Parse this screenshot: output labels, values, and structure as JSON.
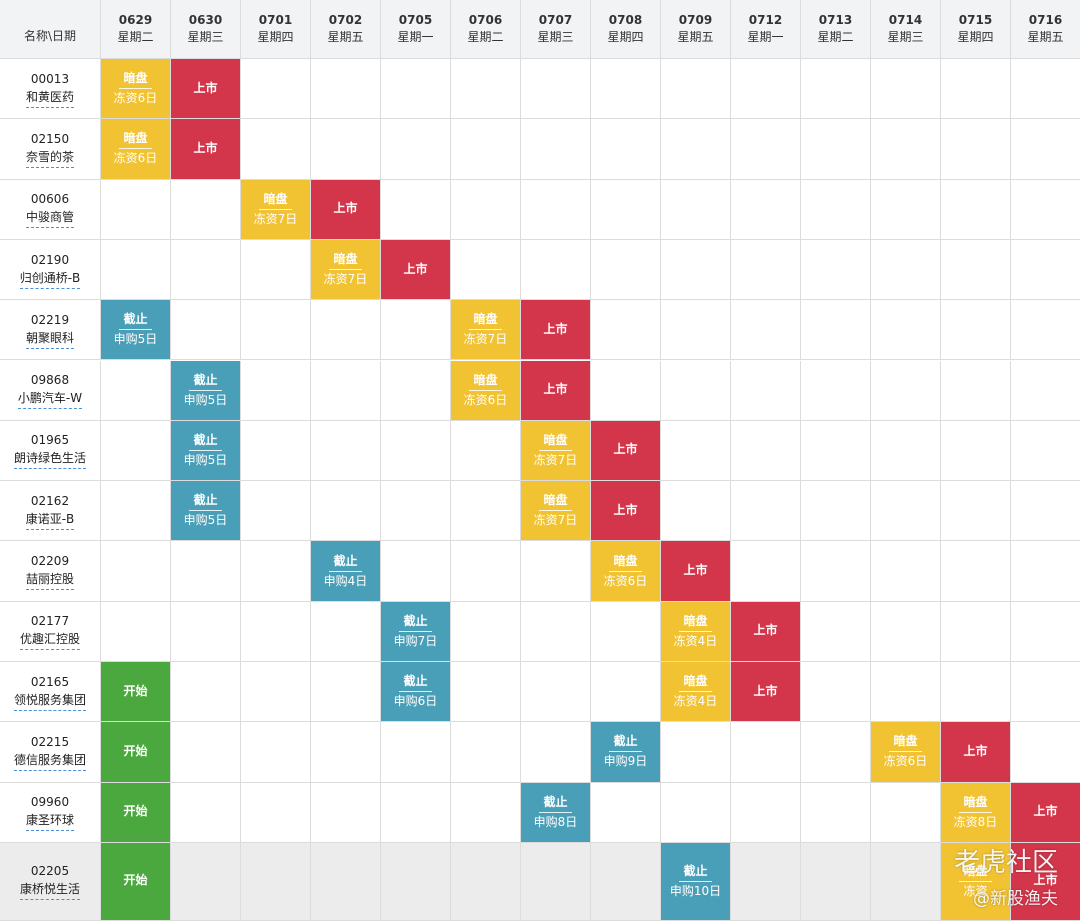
{
  "header": {
    "corner_label": "名称\\日期",
    "dates": [
      {
        "date": "0629",
        "weekday": "星期二"
      },
      {
        "date": "0630",
        "weekday": "星期三"
      },
      {
        "date": "0701",
        "weekday": "星期四"
      },
      {
        "date": "0702",
        "weekday": "星期五"
      },
      {
        "date": "0705",
        "weekday": "星期一"
      },
      {
        "date": "0706",
        "weekday": "星期二"
      },
      {
        "date": "0707",
        "weekday": "星期三"
      },
      {
        "date": "0708",
        "weekday": "星期四"
      },
      {
        "date": "0709",
        "weekday": "星期五"
      },
      {
        "date": "0712",
        "weekday": "星期一"
      },
      {
        "date": "0713",
        "weekday": "星期二"
      },
      {
        "date": "0714",
        "weekday": "星期三"
      },
      {
        "date": "0715",
        "weekday": "星期四"
      },
      {
        "date": "0716",
        "weekday": "星期五"
      }
    ]
  },
  "colors": {
    "start": "#4ba83f",
    "close": "#4a9fb8",
    "grey": "#f1c232",
    "list": "#d3364a",
    "last_row_bg": "#ececec"
  },
  "rows": [
    {
      "code": "00013",
      "name": "和黄医药",
      "events": [
        {
          "col": 0,
          "type": "grey",
          "l1": "暗盘",
          "l2": "冻资6日"
        },
        {
          "col": 1,
          "type": "list",
          "l1": "上市"
        }
      ]
    },
    {
      "code": "02150",
      "name": "奈雪的茶",
      "events": [
        {
          "col": 0,
          "type": "grey",
          "l1": "暗盘",
          "l2": "冻资6日"
        },
        {
          "col": 1,
          "type": "list",
          "l1": "上市"
        }
      ]
    },
    {
      "code": "00606",
      "name": "中骏商管",
      "events": [
        {
          "col": 2,
          "type": "grey",
          "l1": "暗盘",
          "l2": "冻资7日"
        },
        {
          "col": 3,
          "type": "list",
          "l1": "上市"
        }
      ]
    },
    {
      "code": "02190",
      "name": "归创通桥-B",
      "events": [
        {
          "col": 3,
          "type": "grey",
          "l1": "暗盘",
          "l2": "冻资7日"
        },
        {
          "col": 4,
          "type": "list",
          "l1": "上市"
        }
      ]
    },
    {
      "code": "02219",
      "name": "朝聚眼科",
      "events": [
        {
          "col": 0,
          "type": "close",
          "l1": "截止",
          "l2": "申购5日"
        },
        {
          "col": 5,
          "type": "grey",
          "l1": "暗盘",
          "l2": "冻资7日"
        },
        {
          "col": 6,
          "type": "list",
          "l1": "上市"
        }
      ]
    },
    {
      "code": "09868",
      "name": "小鹏汽车-W",
      "events": [
        {
          "col": 1,
          "type": "close",
          "l1": "截止",
          "l2": "申购5日"
        },
        {
          "col": 5,
          "type": "grey",
          "l1": "暗盘",
          "l2": "冻资6日"
        },
        {
          "col": 6,
          "type": "list",
          "l1": "上市"
        }
      ]
    },
    {
      "code": "01965",
      "name": "朗诗绿色生活",
      "events": [
        {
          "col": 1,
          "type": "close",
          "l1": "截止",
          "l2": "申购5日"
        },
        {
          "col": 6,
          "type": "grey",
          "l1": "暗盘",
          "l2": "冻资7日"
        },
        {
          "col": 7,
          "type": "list",
          "l1": "上市"
        }
      ]
    },
    {
      "code": "02162",
      "name": "康诺亚-B",
      "events": [
        {
          "col": 1,
          "type": "close",
          "l1": "截止",
          "l2": "申购5日"
        },
        {
          "col": 6,
          "type": "grey",
          "l1": "暗盘",
          "l2": "冻资7日"
        },
        {
          "col": 7,
          "type": "list",
          "l1": "上市"
        }
      ]
    },
    {
      "code": "02209",
      "name": "喆丽控股",
      "events": [
        {
          "col": 3,
          "type": "close",
          "l1": "截止",
          "l2": "申购4日"
        },
        {
          "col": 7,
          "type": "grey",
          "l1": "暗盘",
          "l2": "冻资6日"
        },
        {
          "col": 8,
          "type": "list",
          "l1": "上市"
        }
      ]
    },
    {
      "code": "02177",
      "name": "优趣汇控股",
      "events": [
        {
          "col": 4,
          "type": "close",
          "l1": "截止",
          "l2": "申购7日"
        },
        {
          "col": 8,
          "type": "grey",
          "l1": "暗盘",
          "l2": "冻资4日"
        },
        {
          "col": 9,
          "type": "list",
          "l1": "上市"
        }
      ]
    },
    {
      "code": "02165",
      "name": "领悦服务集团",
      "events": [
        {
          "col": 0,
          "type": "start",
          "l1": "开始"
        },
        {
          "col": 4,
          "type": "close",
          "l1": "截止",
          "l2": "申购6日"
        },
        {
          "col": 8,
          "type": "grey",
          "l1": "暗盘",
          "l2": "冻资4日"
        },
        {
          "col": 9,
          "type": "list",
          "l1": "上市"
        }
      ]
    },
    {
      "code": "02215",
      "name": "德信服务集团",
      "events": [
        {
          "col": 0,
          "type": "start",
          "l1": "开始"
        },
        {
          "col": 7,
          "type": "close",
          "l1": "截止",
          "l2": "申购9日"
        },
        {
          "col": 11,
          "type": "grey",
          "l1": "暗盘",
          "l2": "冻资6日"
        },
        {
          "col": 12,
          "type": "list",
          "l1": "上市"
        }
      ]
    },
    {
      "code": "09960",
      "name": "康圣环球",
      "events": [
        {
          "col": 0,
          "type": "start",
          "l1": "开始"
        },
        {
          "col": 6,
          "type": "close",
          "l1": "截止",
          "l2": "申购8日"
        },
        {
          "col": 12,
          "type": "grey",
          "l1": "暗盘",
          "l2": "冻资8日"
        },
        {
          "col": 13,
          "type": "list",
          "l1": "上市"
        }
      ]
    },
    {
      "code": "02205",
      "name": "康桥悦生活",
      "events": [
        {
          "col": 0,
          "type": "start",
          "l1": "开始"
        },
        {
          "col": 8,
          "type": "close",
          "l1": "截止",
          "l2": "申购10日"
        },
        {
          "col": 12,
          "type": "grey",
          "l1": "暗盘",
          "l2": "冻资"
        },
        {
          "col": 13,
          "type": "list",
          "l1": "上市"
        }
      ]
    }
  ],
  "watermark": {
    "line1": "老虎社区",
    "line2": "@新股渔夫"
  }
}
